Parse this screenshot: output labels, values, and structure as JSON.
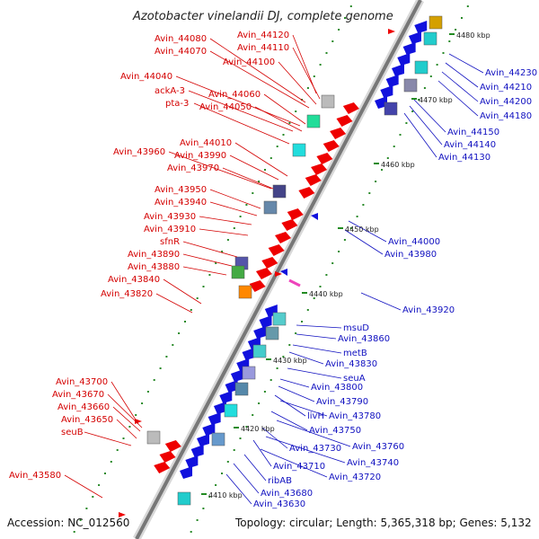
{
  "title": "Azotobacter vinelandii DJ, complete genome",
  "accession": "Accession: NC_012560",
  "summary": "Topology: circular; Length: 5,365,318 bp; Genes: 5,132",
  "colors": {
    "forward": "#ee0000",
    "reverse": "#1111dd",
    "backbone": "#888888",
    "green_tick": "#228b22"
  },
  "scale_labels": [
    "4480 kbp",
    "4470 kbp",
    "4460 kbp",
    "4450 kbp",
    "4440 kbp",
    "4430 kbp",
    "4420 kbp",
    "4410 kbp"
  ],
  "left_labels": [
    "Avin_44120",
    "Avin_44110",
    "Avin_44080",
    "Avin_44070",
    "Avin_44100",
    "Avin_44040",
    "ackA-3",
    "Avin_44060",
    "pta-3",
    "Avin_44050",
    "Avin_44010",
    "Avin_43960",
    "Avin_43990",
    "Avin_43970",
    "Avin_43950",
    "Avin_43940",
    "Avin_43930",
    "Avin_43910",
    "sfnR",
    "Avin_43890",
    "Avin_43880",
    "Avin_43840",
    "Avin_43820",
    "Avin_43700",
    "Avin_43670",
    "Avin_43660",
    "Avin_43650",
    "seuB",
    "Avin_43580"
  ],
  "right_labels": [
    "Avin_44230",
    "Avin_44210",
    "Avin_44200",
    "Avin_44180",
    "Avin_44150",
    "Avin_44140",
    "Avin_44130",
    "Avin_44000",
    "Avin_43980",
    "Avin_43920",
    "msuD",
    "Avin_43860",
    "metB",
    "Avin_43830",
    "seuA",
    "Avin_43800",
    "Avin_43790",
    "livH",
    "Avin_43780",
    "Avin_43750",
    "Avin_43760",
    "Avin_43730",
    "Avin_43740",
    "Avin_43710",
    "Avin_43720",
    "ribAB",
    "Avin_43680",
    "Avin_43630"
  ]
}
